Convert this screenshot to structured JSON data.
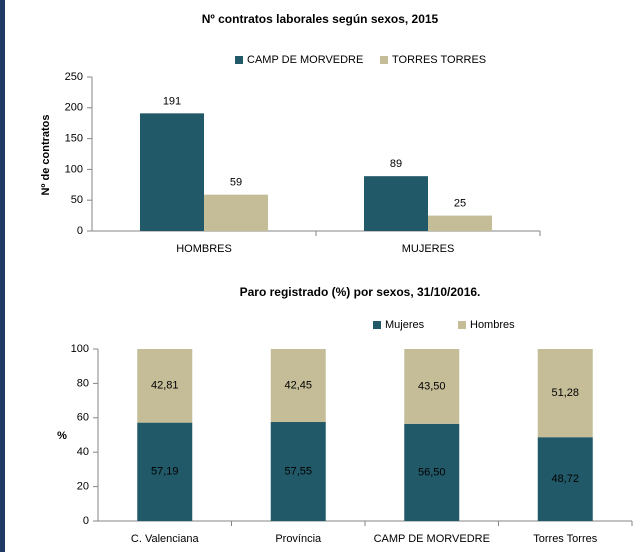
{
  "chart_data": [
    {
      "type": "bar",
      "title": "Nº contratos laborales según sexos, 2015",
      "y_label": "Nº de contratos",
      "categories": [
        "HOMBRES",
        "MUJERES"
      ],
      "series": [
        {
          "name": "CAMP DE MORVEDRE",
          "color": "#215968",
          "values": [
            191,
            89
          ]
        },
        {
          "name": "TORRES TORRES",
          "color": "#c4bd97",
          "values": [
            59,
            25
          ]
        }
      ],
      "ylim": [
        0,
        250
      ],
      "yticks": [
        0,
        50,
        100,
        150,
        200,
        250
      ],
      "legend": "top"
    },
    {
      "type": "stacked_bar",
      "title": "Paro registrado (%) por sexos, 31/10/2016.",
      "y_label": "%",
      "categories": [
        "C. Valenciana",
        "Província",
        "CAMP DE MORVEDRE",
        "Torres Torres"
      ],
      "series": [
        {
          "name": "Mujeres",
          "color": "#215968",
          "values": [
            57.19,
            57.55,
            56.5,
            48.72
          ],
          "value_labels": [
            "57,19",
            "57,55",
            "56,50",
            "48,72"
          ]
        },
        {
          "name": "Hombres",
          "color": "#c4bd97",
          "values": [
            42.81,
            42.45,
            43.5,
            51.28
          ],
          "value_labels": [
            "42,81",
            "42,45",
            "43,50",
            "51,28"
          ]
        }
      ],
      "ylim": [
        0,
        100
      ],
      "yticks": [
        0,
        20,
        40,
        60,
        80,
        100
      ],
      "legend": "top-right"
    }
  ]
}
